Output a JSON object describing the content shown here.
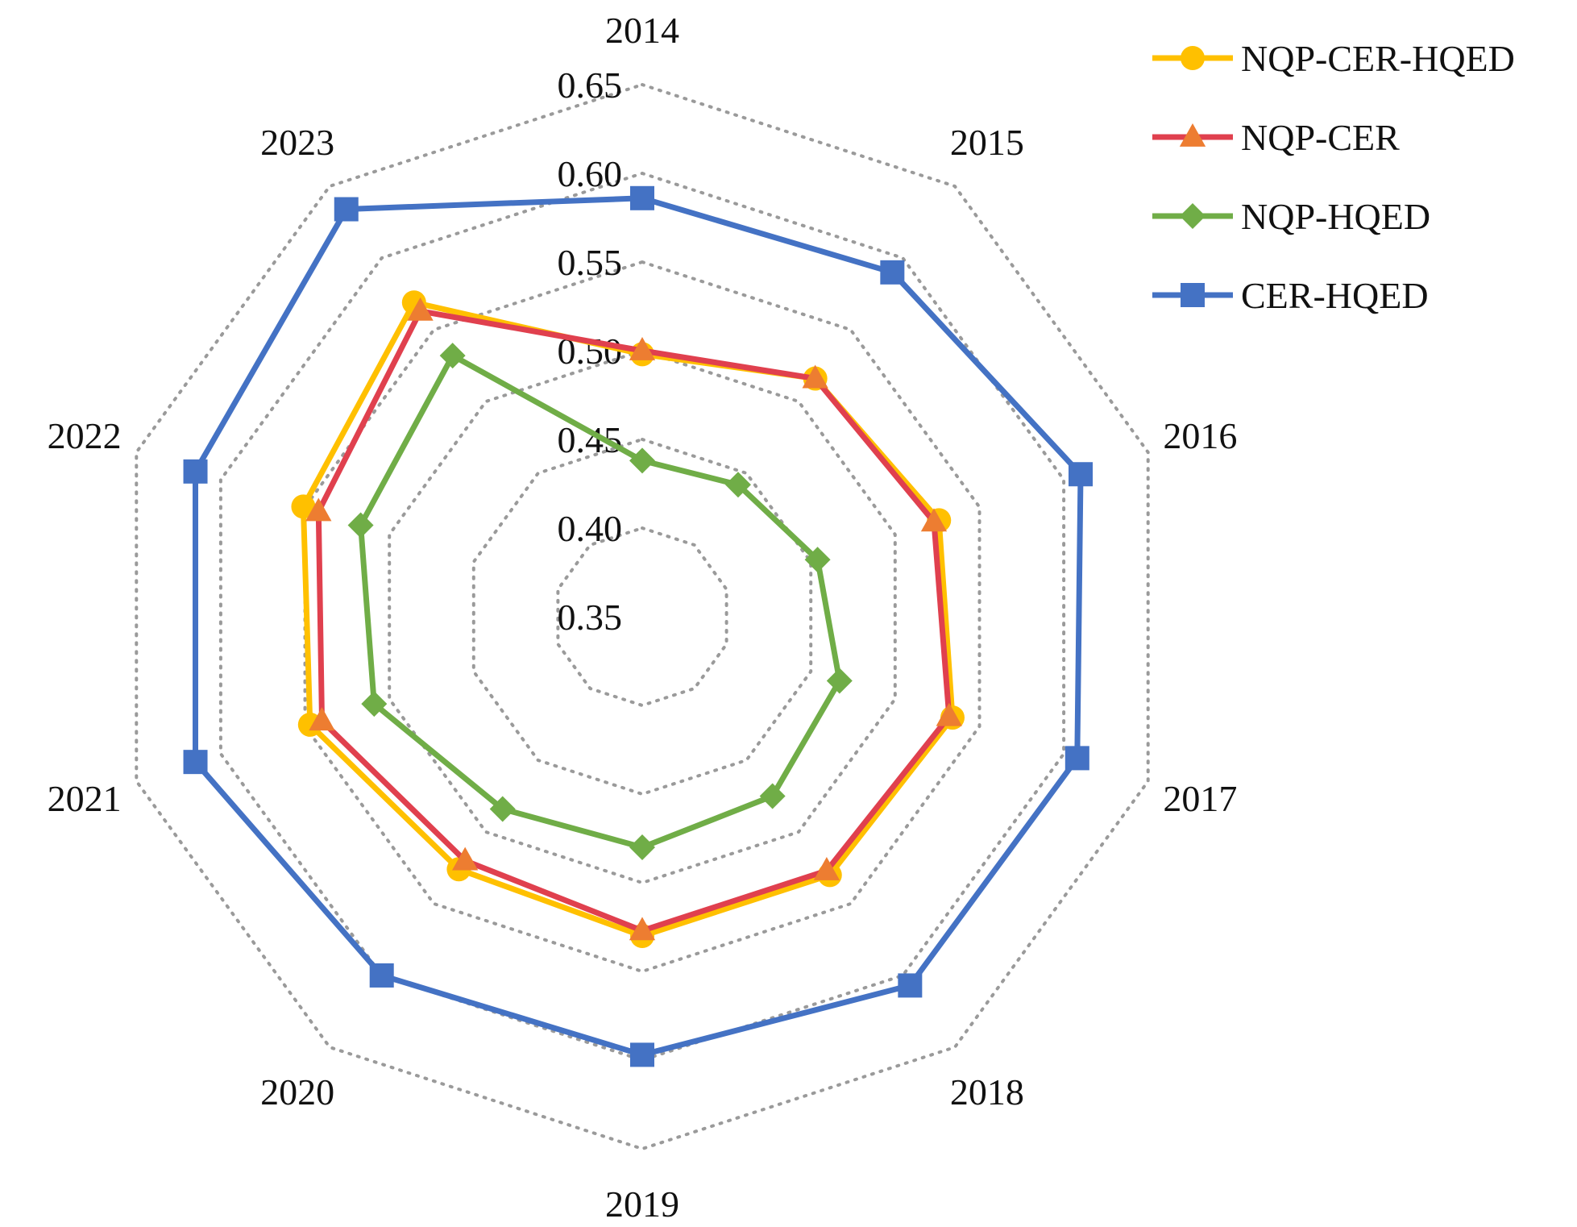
{
  "chart_data": {
    "type": "radar",
    "title": "",
    "categories": [
      "2014",
      "2015",
      "2016",
      "2017",
      "2018",
      "2019",
      "2020",
      "2021",
      "2022",
      "2023"
    ],
    "rlim": [
      0.35,
      0.65
    ],
    "ticks": [
      "0.35",
      "0.40",
      "0.45",
      "0.50",
      "0.55",
      "0.60",
      "0.65"
    ],
    "tick_values": [
      0.35,
      0.4,
      0.45,
      0.5,
      0.55,
      0.6,
      0.65
    ],
    "grid": true,
    "legend_position": "top-right",
    "series": [
      {
        "name": "NQP-CER-HQED",
        "marker": "circle",
        "color": "#FFC000",
        "values": [
          0.498,
          0.516,
          0.526,
          0.534,
          0.53,
          0.53,
          0.526,
          0.547,
          0.551,
          0.569
        ]
      },
      {
        "name": "NQP-CER",
        "marker": "triangle",
        "color": "#E0404E",
        "marker_color": "#ED7D31",
        "values": [
          0.5,
          0.516,
          0.523,
          0.532,
          0.527,
          0.527,
          0.52,
          0.54,
          0.542,
          0.563
        ]
      },
      {
        "name": "NQP-HQED",
        "marker": "diamond",
        "color": "#70AD47",
        "values": [
          0.438,
          0.442,
          0.454,
          0.467,
          0.475,
          0.48,
          0.484,
          0.509,
          0.517,
          0.532
        ]
      },
      {
        "name": "CER-HQED",
        "marker": "square",
        "color": "#4472C4",
        "values": [
          0.586,
          0.59,
          0.61,
          0.608,
          0.607,
          0.597,
          0.6,
          0.615,
          0.615,
          0.634
        ]
      }
    ]
  }
}
